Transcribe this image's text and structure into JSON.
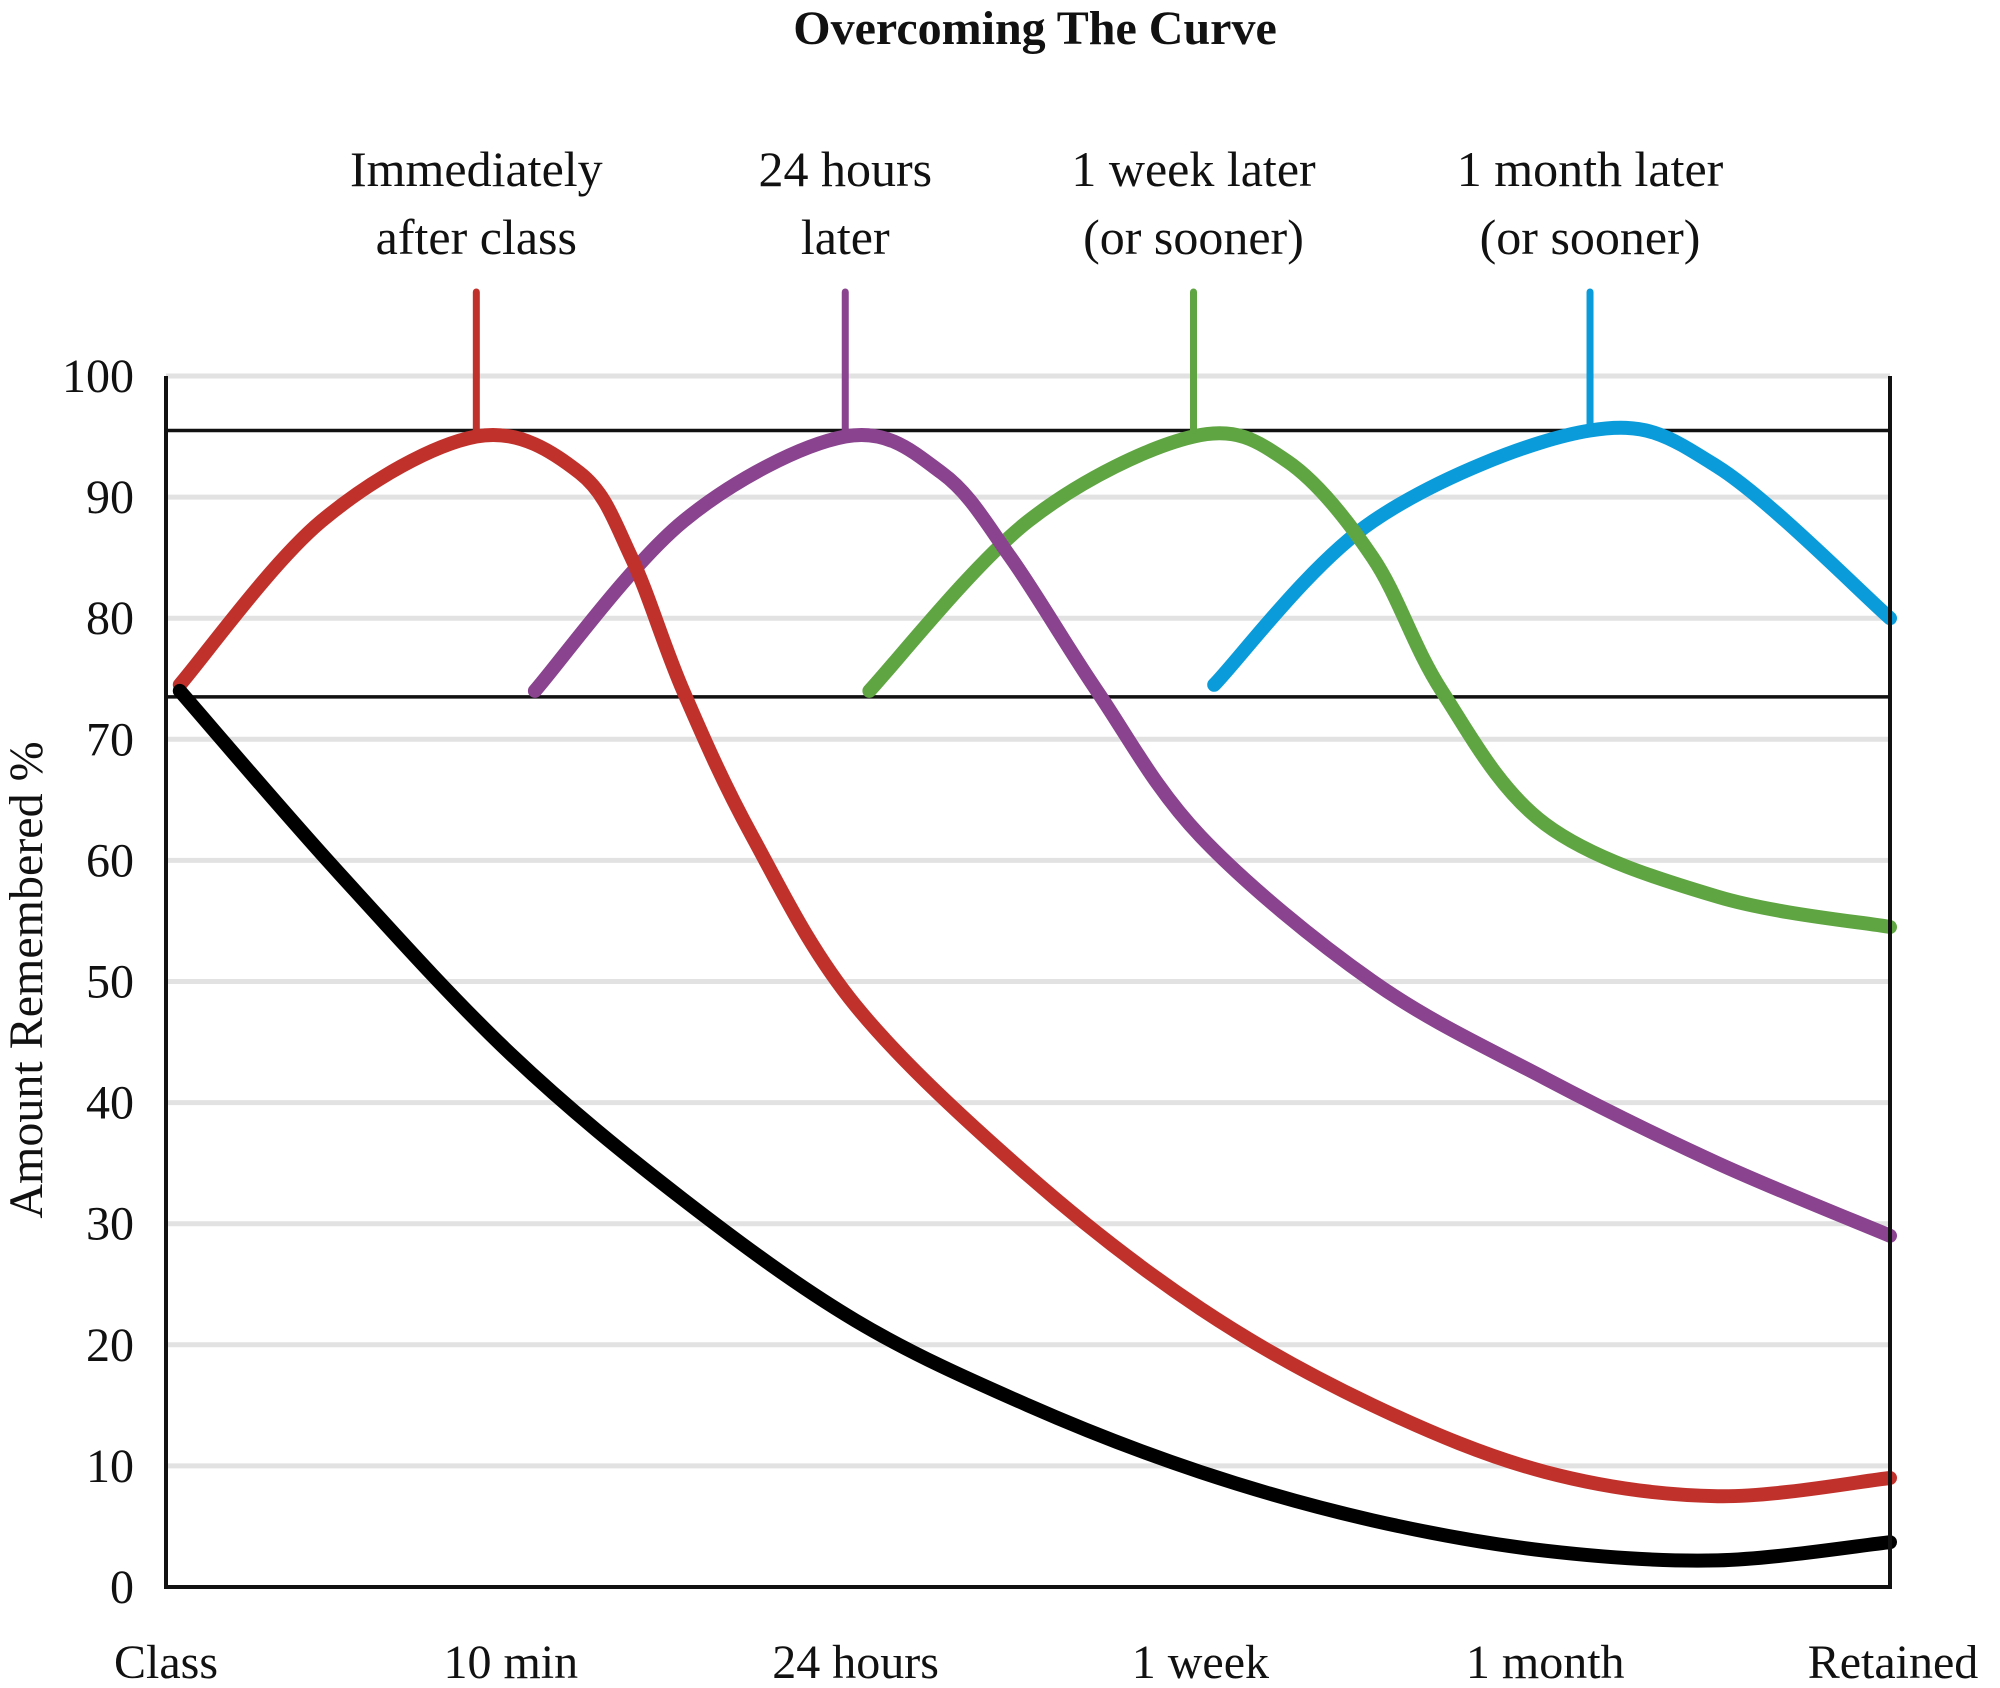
{
  "chart_data": {
    "type": "line",
    "title": "Overcoming The Curve",
    "xlabel": "",
    "ylabel": "Amount Remembered %",
    "x_categories": [
      "Class",
      "10 min",
      "24 hours",
      "1 week",
      "1 month",
      "Retained"
    ],
    "ylim": [
      0,
      100
    ],
    "y_ticks": [
      0,
      10,
      20,
      30,
      40,
      50,
      60,
      70,
      80,
      90,
      100
    ],
    "grid": true,
    "legend": "none",
    "reference_lines": [
      95.5,
      73.5
    ],
    "review_points": [
      {
        "label_lines": [
          "Immediately",
          "after class"
        ],
        "x": 0.9,
        "color": "#c1312b"
      },
      {
        "label_lines": [
          "24 hours",
          "later"
        ],
        "x": 1.97,
        "color": "#8a438f"
      },
      {
        "label_lines": [
          "1 week later",
          "(or sooner)"
        ],
        "x": 2.98,
        "color": "#5fa542"
      },
      {
        "label_lines": [
          "1 month later",
          "(or sooner)"
        ],
        "x": 4.13,
        "color": "#0a9bdb"
      }
    ],
    "series": [
      {
        "color": "#000000",
        "points": [
          [
            0.04,
            74
          ],
          [
            0.5,
            59
          ],
          [
            1.0,
            44
          ],
          [
            1.5,
            32
          ],
          [
            2.0,
            22
          ],
          [
            2.5,
            15
          ],
          [
            3.0,
            9.5
          ],
          [
            3.5,
            5.5
          ],
          [
            4.0,
            3
          ],
          [
            4.5,
            2.2
          ],
          [
            5.0,
            3.7
          ]
        ]
      },
      {
        "color": "#c1312b",
        "points": [
          [
            0.04,
            74.5
          ],
          [
            0.45,
            88
          ],
          [
            0.9,
            95
          ],
          [
            1.2,
            92
          ],
          [
            1.35,
            85
          ],
          [
            1.5,
            74
          ],
          [
            1.7,
            62
          ],
          [
            2.0,
            48
          ],
          [
            2.5,
            34
          ],
          [
            3.0,
            23
          ],
          [
            3.5,
            15
          ],
          [
            4.0,
            9.5
          ],
          [
            4.5,
            7.5
          ],
          [
            5.0,
            9
          ]
        ]
      },
      {
        "color": "#8a438f",
        "points": [
          [
            1.07,
            74
          ],
          [
            1.5,
            88
          ],
          [
            1.97,
            95
          ],
          [
            2.25,
            92
          ],
          [
            2.45,
            85
          ],
          [
            2.7,
            74
          ],
          [
            3.0,
            62
          ],
          [
            3.5,
            50
          ],
          [
            4.0,
            42
          ],
          [
            4.5,
            35
          ],
          [
            5.0,
            29
          ]
        ]
      },
      {
        "color": "#5fa542",
        "points": [
          [
            2.04,
            74
          ],
          [
            2.5,
            88
          ],
          [
            2.98,
            95
          ],
          [
            3.25,
            93
          ],
          [
            3.5,
            85
          ],
          [
            3.7,
            74
          ],
          [
            4.0,
            63
          ],
          [
            4.5,
            57
          ],
          [
            5.0,
            54.5
          ]
        ]
      },
      {
        "color": "#0a9bdb",
        "points": [
          [
            3.04,
            74.5
          ],
          [
            3.5,
            88
          ],
          [
            4.13,
            95.5
          ],
          [
            4.5,
            92.5
          ],
          [
            5.0,
            80
          ]
        ]
      }
    ]
  }
}
